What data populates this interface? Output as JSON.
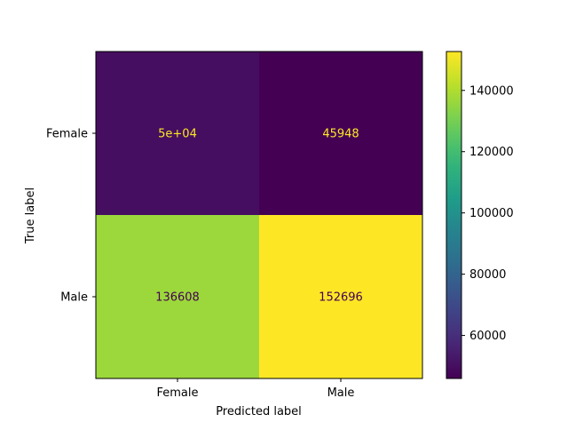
{
  "chart_data": {
    "type": "heatmap",
    "title": "",
    "xlabel": "Predicted label",
    "ylabel": "True label",
    "x_categories": [
      "Female",
      "Male"
    ],
    "y_categories": [
      "Female",
      "Male"
    ],
    "values": [
      [
        50000,
        45948
      ],
      [
        136608,
        152696
      ]
    ],
    "cell_labels": [
      [
        "5e+04",
        "45948"
      ],
      [
        "136608",
        "152696"
      ]
    ],
    "colormap": "viridis",
    "colorbar": {
      "range": [
        45948,
        152696
      ],
      "ticks": [
        60000,
        80000,
        100000,
        120000,
        140000
      ],
      "tick_labels": [
        "60000",
        "80000",
        "100000",
        "120000",
        "140000"
      ]
    },
    "text_colors": {
      "on_dark": "#fde725",
      "on_light": "#440154"
    },
    "grid": false
  }
}
